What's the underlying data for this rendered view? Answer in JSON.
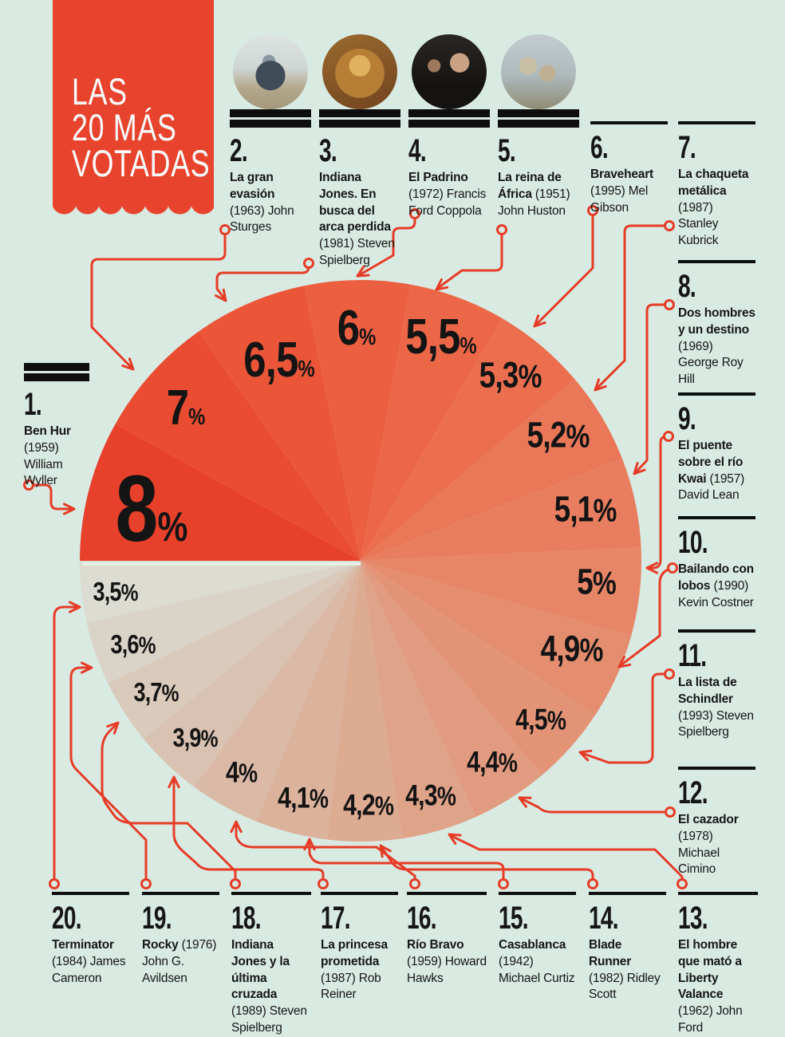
{
  "banner": {
    "line1": "LAS",
    "line2": "20 MÁS",
    "line3": "VOTADAS"
  },
  "colors": {
    "background": "#d9eae2",
    "accent_red": "#e8432d",
    "connector_red": "#e63c27",
    "text_black": "#141414",
    "bar_black": "#0e0e0e"
  },
  "chart_data": {
    "type": "pie",
    "title": "Las 20 más votadas",
    "unit": "%",
    "start_angle_deg": 180,
    "direction": "clockwise",
    "legend": "none",
    "slices": [
      {
        "rank": 1,
        "display": "8",
        "value": 8,
        "color": "#e7402b"
      },
      {
        "rank": 2,
        "display": "7",
        "value": 7,
        "color": "#e94c31"
      },
      {
        "rank": 3,
        "display": "6,5",
        "value": 6.5,
        "color": "#eb5638"
      },
      {
        "rank": 4,
        "display": "6",
        "value": 6,
        "color": "#ec5f40"
      },
      {
        "rank": 5,
        "display": "5,5",
        "value": 5.5,
        "color": "#ec6747"
      },
      {
        "rank": 6,
        "display": "5,3",
        "value": 5.3,
        "color": "#eb6f4f"
      },
      {
        "rank": 7,
        "display": "5,2",
        "value": 5.2,
        "color": "#ea7757"
      },
      {
        "rank": 8,
        "display": "5,1",
        "value": 5.1,
        "color": "#e87e5f"
      },
      {
        "rank": 9,
        "display": "5",
        "value": 5,
        "color": "#e78667"
      },
      {
        "rank": 10,
        "display": "4,9",
        "value": 4.9,
        "color": "#e58d6f"
      },
      {
        "rank": 11,
        "display": "4,5",
        "value": 4.5,
        "color": "#e39477"
      },
      {
        "rank": 12,
        "display": "4,4",
        "value": 4.4,
        "color": "#e19b80"
      },
      {
        "rank": 13,
        "display": "4,3",
        "value": 4.3,
        "color": "#dfa389"
      },
      {
        "rank": 14,
        "display": "4,2",
        "value": 4.2,
        "color": "#ddaa92"
      },
      {
        "rank": 15,
        "display": "4,1",
        "value": 4.1,
        "color": "#dbb29c"
      },
      {
        "rank": 16,
        "display": "4",
        "value": 4,
        "color": "#dabaa6"
      },
      {
        "rank": 17,
        "display": "3,9",
        "value": 3.9,
        "color": "#d9c2b1"
      },
      {
        "rank": 18,
        "display": "3,7",
        "value": 3.7,
        "color": "#d9cabc"
      },
      {
        "rank": 19,
        "display": "3,6",
        "value": 3.6,
        "color": "#dad3c8"
      },
      {
        "rank": 20,
        "display": "3,5",
        "value": 3.5,
        "color": "#dcdcd3"
      }
    ]
  },
  "entries": [
    {
      "rank": "1.",
      "title": "Ben Hur",
      "detail": "(1959) William Wyller",
      "pct": "8%"
    },
    {
      "rank": "2.",
      "title": "La gran evasión",
      "detail": "(1963) John Sturges",
      "pct": "7%",
      "thumbnail": "steve-mcqueen-motorcycle-still"
    },
    {
      "rank": "3.",
      "title": "Indiana Jones. En busca del arca perdida",
      "detail": "(1981) Steven Spielberg",
      "pct": "6,5%",
      "thumbnail": "raiders-of-the-lost-ark-poster"
    },
    {
      "rank": "4.",
      "title": "El Padrino",
      "detail": "(1972) Francis Ford Coppola",
      "pct": "6%",
      "thumbnail": "the-godfather-still"
    },
    {
      "rank": "5.",
      "title": "La reina de África",
      "detail": "(1951) John Huston",
      "pct": "5,5%",
      "thumbnail": "the-african-queen-still"
    },
    {
      "rank": "6.",
      "title": "Braveheart",
      "detail": "(1995) Mel Gibson",
      "pct": "5,3%"
    },
    {
      "rank": "7.",
      "title": "La chaqueta metálica",
      "detail": "(1987) Stanley Kubrick",
      "pct": "5,2%"
    },
    {
      "rank": "8.",
      "title": "Dos hombres y un destino",
      "detail": "(1969) George Roy Hill",
      "pct": "5,1%"
    },
    {
      "rank": "9.",
      "title": "El puente sobre el río Kwai",
      "detail": "(1957) David Lean",
      "pct": "5%"
    },
    {
      "rank": "10.",
      "title": "Bailando con lobos",
      "detail": "(1990) Kevin Costner",
      "pct": "4,9%"
    },
    {
      "rank": "11.",
      "title": "La lista de Schindler",
      "detail": "(1993) Steven Spielberg",
      "pct": "4,5%"
    },
    {
      "rank": "12.",
      "title": "El cazador",
      "detail": "(1978) Michael Cimino",
      "pct": "4,4%"
    },
    {
      "rank": "13.",
      "title": "El hombre que mató a Liberty Valance",
      "detail": "(1962) John Ford",
      "pct": "4,3%"
    },
    {
      "rank": "14.",
      "title": "Blade Runner",
      "detail": "(1982) Ridley Scott",
      "pct": "4,2%"
    },
    {
      "rank": "15.",
      "title": "Casablanca",
      "detail": "(1942) Michael Curtiz",
      "pct": "4,1%"
    },
    {
      "rank": "16.",
      "title": "Río Bravo",
      "detail": "(1959) Howard Hawks",
      "pct": "4%"
    },
    {
      "rank": "17.",
      "title": "La princesa prometida",
      "detail": "(1987) Rob Reiner",
      "pct": "3,9%"
    },
    {
      "rank": "18.",
      "title": "Indiana Jones y la última cruzada",
      "detail": "(1989) Steven Spielberg",
      "pct": "3,7%"
    },
    {
      "rank": "19.",
      "title": "Rocky",
      "detail": "(1976) John G. Avildsen",
      "pct": "3,6%"
    },
    {
      "rank": "20.",
      "title": "Terminator",
      "detail": "(1984) James Cameron",
      "pct": "3,5%"
    }
  ]
}
